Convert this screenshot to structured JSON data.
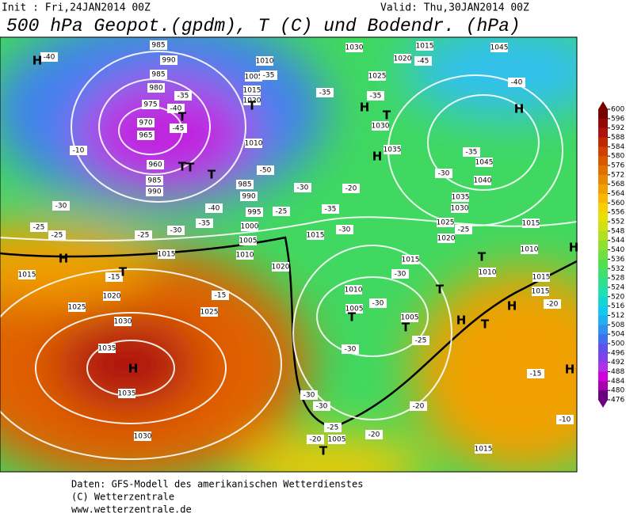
{
  "header": {
    "init": "Init : Fri,24JAN2014 00Z",
    "valid": "Valid: Thu,30JAN2014 00Z",
    "title": "500 hPa Geopot.(gpdm), T (C) und Bodendr. (hPa)"
  },
  "colorbar": {
    "ticks": [
      600,
      596,
      592,
      588,
      584,
      580,
      576,
      572,
      568,
      564,
      560,
      556,
      552,
      548,
      544,
      540,
      536,
      532,
      528,
      524,
      520,
      516,
      512,
      508,
      504,
      500,
      496,
      492,
      488,
      484,
      480,
      476
    ],
    "colors": [
      "#7a0000",
      "#960808",
      "#b01010",
      "#c02800",
      "#d04000",
      "#d85800",
      "#e07000",
      "#e88800",
      "#f0a000",
      "#f8b800",
      "#f8d000",
      "#e8e000",
      "#d0e010",
      "#b0e020",
      "#90e030",
      "#70e040",
      "#50e050",
      "#40e070",
      "#30e090",
      "#20e0b0",
      "#10d8d0",
      "#10c8f0",
      "#20b0f0",
      "#3090f0",
      "#4070f0",
      "#6050f0",
      "#8040f0",
      "#b030e8",
      "#d000e0",
      "#a800b0",
      "#6a0080"
    ]
  },
  "map_labels": [
    "985",
    "990",
    "985",
    "980",
    "975",
    "970",
    "965",
    "960",
    "985",
    "990",
    "1010",
    "1005",
    "1015",
    "1020",
    "1010",
    "985",
    "990",
    "995",
    "1000",
    "1005",
    "1010",
    "1015",
    "1015",
    "1020",
    "1025",
    "1025",
    "1030",
    "1035",
    "1035",
    "1030",
    "1020",
    "1015",
    "1030",
    "1025",
    "1020",
    "1015",
    "1045",
    "1030",
    "1035",
    "1045",
    "1040",
    "1035",
    "1030",
    "1025",
    "1020",
    "1015",
    "1010",
    "1015",
    "1010",
    "1015",
    "1015",
    "1010",
    "1005",
    "1005",
    "1005",
    "1015",
    "-40",
    "-45",
    "-40",
    "-35",
    "-35",
    "-35",
    "-35",
    "-40",
    "-45",
    "-35",
    "-30",
    "-10",
    "-30",
    "-25",
    "-25",
    "-25",
    "-30",
    "-35",
    "-40",
    "-30",
    "-20",
    "-35",
    "-25",
    "-30",
    "-25",
    "-30",
    "-30",
    "-25",
    "-30",
    "-30",
    "-30",
    "-25",
    "-20",
    "-20",
    "-20",
    "-15",
    "-10",
    "-20",
    "-15",
    "-15",
    "-50",
    "H",
    "T",
    "T",
    "T",
    "H",
    "H",
    "T",
    "H",
    "T",
    "H",
    "H",
    "T",
    "T",
    "T",
    "T",
    "H",
    "H",
    "T",
    "H",
    "H",
    "T",
    "T",
    "T"
  ],
  "footer": [
    "Daten: GFS-Modell des amerikanischen Wetterdienstes",
    "(C) Wetterzentrale",
    "www.wetterzentrale.de"
  ]
}
